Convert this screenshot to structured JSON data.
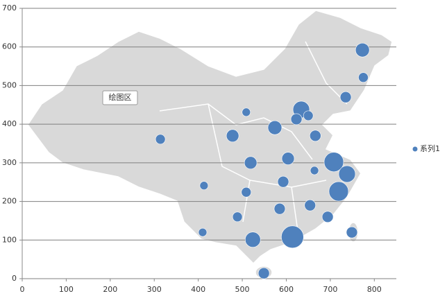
{
  "chart_data": {
    "type": "bubble",
    "x": [
      773,
      775,
      735,
      509,
      634,
      623,
      650,
      574,
      478,
      666,
      314,
      604,
      519,
      708,
      664,
      738,
      413,
      593,
      509,
      719,
      585,
      654,
      489,
      694,
      749,
      410,
      524,
      614,
      549
    ],
    "series": [
      {
        "name": "系列1",
        "color": "#4f81bd",
        "values": [
          592,
          521,
          470,
          431,
          438,
          413,
          422,
          391,
          370,
          370,
          361,
          311,
          300,
          302,
          280,
          271,
          241,
          251,
          224,
          226,
          181,
          190,
          160,
          160,
          120,
          120,
          101,
          108,
          14
        ],
        "sizes": [
          100,
          49,
          64,
          36,
          144,
          64,
          49,
          100,
          81,
          64,
          49,
          81,
          81,
          196,
          36,
          144,
          36,
          64,
          49,
          196,
          64,
          64,
          49,
          64,
          64,
          36,
          121,
          256,
          64
        ]
      }
    ],
    "xlim": [
      0,
      850
    ],
    "xticks": [
      0,
      100,
      200,
      300,
      400,
      500,
      600,
      700,
      800
    ],
    "ylim": [
      0,
      700
    ],
    "yticks": [
      0,
      100,
      200,
      300,
      400,
      500,
      600,
      700
    ],
    "grid": true,
    "legend": "right",
    "tooltip": "绘图区"
  }
}
